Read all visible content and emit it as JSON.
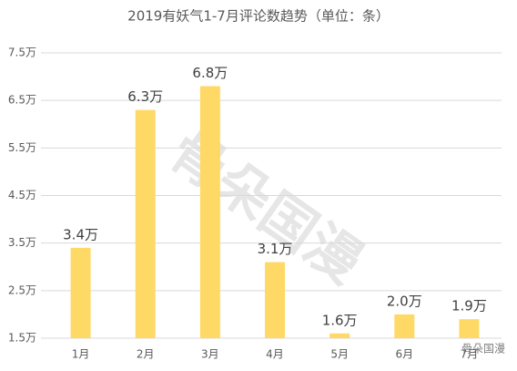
{
  "chart_data": {
    "type": "bar",
    "title": "2019有妖气1-7月评论数趋势（单位：条）",
    "categories": [
      "1月",
      "2月",
      "3月",
      "4月",
      "5月",
      "6月",
      "7月"
    ],
    "values": [
      3.4,
      6.3,
      6.8,
      3.1,
      1.6,
      2.0,
      1.9
    ],
    "value_labels": [
      "3.4万",
      "6.3万",
      "6.8万",
      "3.1万",
      "1.6万",
      "2.0万",
      "1.9万"
    ],
    "color": "#ffd966",
    "ylim": [
      1.5,
      7.5
    ],
    "yticks": [
      {
        "value": 1.5,
        "label": "1.5万"
      },
      {
        "value": 2.5,
        "label": "2.5万"
      },
      {
        "value": 3.5,
        "label": "3.5万"
      },
      {
        "value": 4.5,
        "label": "4.5万"
      },
      {
        "value": 5.5,
        "label": "5.5万"
      },
      {
        "value": 6.5,
        "label": "6.5万"
      },
      {
        "value": 7.5,
        "label": "7.5万"
      }
    ],
    "grid": true,
    "watermark": "骨朵国漫"
  }
}
